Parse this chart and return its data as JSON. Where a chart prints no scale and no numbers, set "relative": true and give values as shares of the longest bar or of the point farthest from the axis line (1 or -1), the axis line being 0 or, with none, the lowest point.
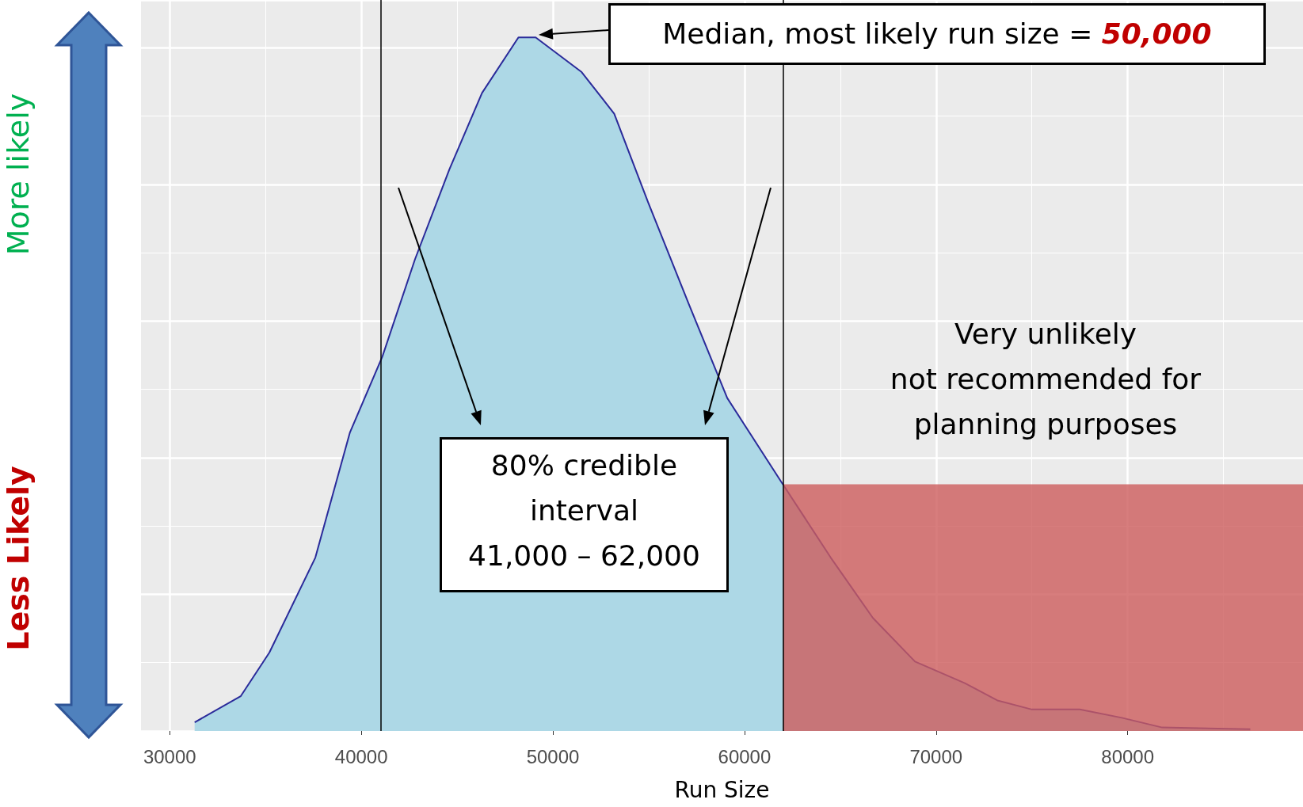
{
  "chart_data": {
    "type": "area",
    "relative": true,
    "xlabel": "Run Size",
    "x": [
      31300,
      33700,
      35200,
      37600,
      39400,
      41100,
      42800,
      44600,
      46300,
      48200,
      49100,
      51500,
      53200,
      55000,
      57100,
      59100,
      61900,
      64500,
      66700,
      68900,
      71500,
      73200,
      75000,
      77500,
      79700,
      81800,
      86400
    ],
    "series": [
      {
        "color": "#add8e6",
        "values": [
          0.0125,
          0.05,
          0.113,
          0.25,
          0.43,
          0.54,
          0.68,
          0.81,
          0.92,
          1,
          1,
          0.95,
          0.89,
          0.76,
          0.615,
          0.48,
          0.36,
          0.25,
          0.163,
          0.1,
          0.069,
          0.044,
          0.031,
          0.031,
          0.019,
          0.005,
          0.0025
        ]
      }
    ],
    "xlim": [
      28500,
      89150
    ],
    "xticks": [
      30000,
      40000,
      50000,
      60000,
      70000,
      80000
    ],
    "grid": true,
    "marker": "none",
    "ref_lines": [
      {
        "axis": "x",
        "value": 41000,
        "color": "#000000"
      },
      {
        "axis": "x",
        "value": 62000,
        "color": "#000000"
      }
    ],
    "bands": [
      {
        "axis": "x",
        "from": 62000,
        "to": 89150,
        "color": "#cd5c5c",
        "label": "Very unlikely\nnot recommended for\nplanning purposes"
      }
    ],
    "annotations": [
      "Median, most likely run size = 50,000",
      "80% credible\ninterval\n41,000 – 62,000",
      "More likely",
      "Less Likely"
    ]
  }
}
